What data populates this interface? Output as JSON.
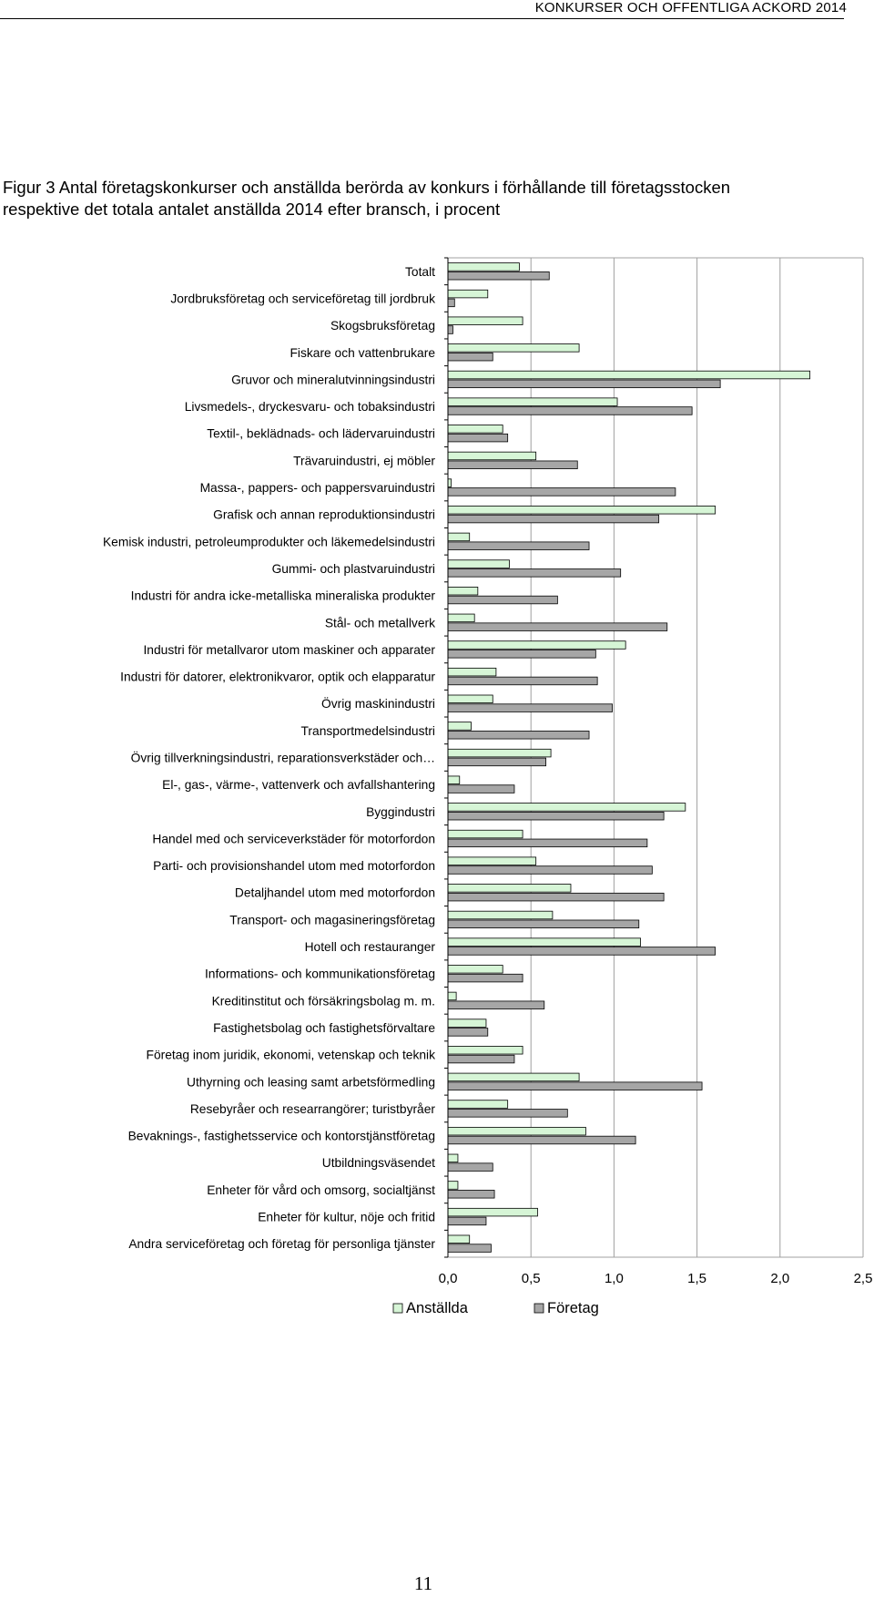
{
  "header": {
    "title": "KONKURSER OCH OFFENTLIGA ACKORD 2014"
  },
  "figure": {
    "caption_line1": "Figur 3 Antal företagskonkurser och anställda berörda av konkurs i förhållande till företagsstocken",
    "caption_line2": "respektive det totala antalet anställda 2014 efter bransch, i procent"
  },
  "colors": {
    "anstallda": "#d6f5d6",
    "foretag": "#a6a6a6",
    "gridline": "#a0a0a0",
    "bar_stroke": "#000000"
  },
  "chart_data": {
    "type": "bar",
    "orientation": "horizontal",
    "title": "",
    "xlabel": "",
    "ylabel": "",
    "xlim": [
      0,
      2.5
    ],
    "x_ticks": [
      0,
      0.5,
      1.0,
      1.5,
      2.0,
      2.5
    ],
    "x_tick_labels": [
      "0,0",
      "0,5",
      "1,0",
      "1,5",
      "2,0",
      "2,5"
    ],
    "grid": "vertical gridlines",
    "legend_placement": "bottom",
    "categories": [
      "Totalt",
      "Jordbruksföretag och serviceföretag till jordbruk",
      "Skogsbruksföretag",
      "Fiskare och vattenbrukare",
      "Gruvor och mineralutvinningsindustri",
      "Livsmedels-, dryckesvaru- och tobaksindustri",
      "Textil-, beklädnads- och lädervaruindustri",
      "Trävaruindustri, ej möbler",
      "Massa-, pappers- och pappersvaruindustri",
      "Grafisk och annan reproduktionsindustri",
      "Kemisk industri, petroleumprodukter och läkemedelsindustri",
      "Gummi- och plastvaruindustri",
      "Industri för andra icke-metalliska mineraliska produkter",
      "Stål- och metallverk",
      "Industri för metallvaror utom maskiner och apparater",
      "Industri för datorer, elektronikvaror, optik och elapparatur",
      "Övrig maskinindustri",
      "Transportmedelsindustri",
      "Övrig tillverkningsindustri, reparationsverkstäder och…",
      "El-, gas-, värme-, vattenverk och avfallshantering",
      "Byggindustri",
      "Handel med och serviceverkstäder för motorfordon",
      "Parti- och provisionshandel utom med motorfordon",
      "Detaljhandel utom med motorfordon",
      "Transport- och magasineringsföretag",
      "Hotell och restauranger",
      "Informations- och kommunikationsföretag",
      "Kreditinstitut och försäkringsbolag m. m.",
      "Fastighetsbolag och fastighetsförvaltare",
      "Företag inom juridik, ekonomi, vetenskap och teknik",
      "Uthyrning och leasing samt arbetsförmedling",
      "Resebyråer och researrangörer; turistbyråer",
      "Bevaknings-, fastighetsservice och kontorstjänstföretag",
      "Utbildningsväsendet",
      "Enheter för vård och omsorg, socialtjänst",
      "Enheter för kultur, nöje och fritid",
      "Andra serviceföretag och företag för personliga tjänster"
    ],
    "series": [
      {
        "name": "Anställda",
        "values": [
          0.43,
          0.24,
          0.45,
          0.79,
          2.18,
          1.02,
          0.33,
          0.53,
          0.02,
          1.61,
          0.13,
          0.37,
          0.18,
          0.16,
          1.07,
          0.29,
          0.27,
          0.14,
          0.62,
          0.07,
          1.43,
          0.45,
          0.53,
          0.74,
          0.63,
          1.16,
          0.33,
          0.05,
          0.23,
          0.45,
          0.79,
          0.36,
          0.83,
          0.06,
          0.06,
          0.54,
          0.13
        ]
      },
      {
        "name": "Företag",
        "values": [
          0.61,
          0.04,
          0.03,
          0.27,
          1.64,
          1.47,
          0.36,
          0.78,
          1.37,
          1.27,
          0.85,
          1.04,
          0.66,
          1.32,
          0.89,
          0.9,
          0.99,
          0.85,
          0.59,
          0.4,
          1.3,
          1.2,
          1.23,
          1.3,
          1.15,
          1.61,
          0.45,
          0.58,
          0.24,
          0.4,
          1.53,
          0.72,
          1.13,
          0.27,
          0.28,
          0.23,
          0.26
        ]
      }
    ]
  },
  "page": {
    "number": "11"
  }
}
